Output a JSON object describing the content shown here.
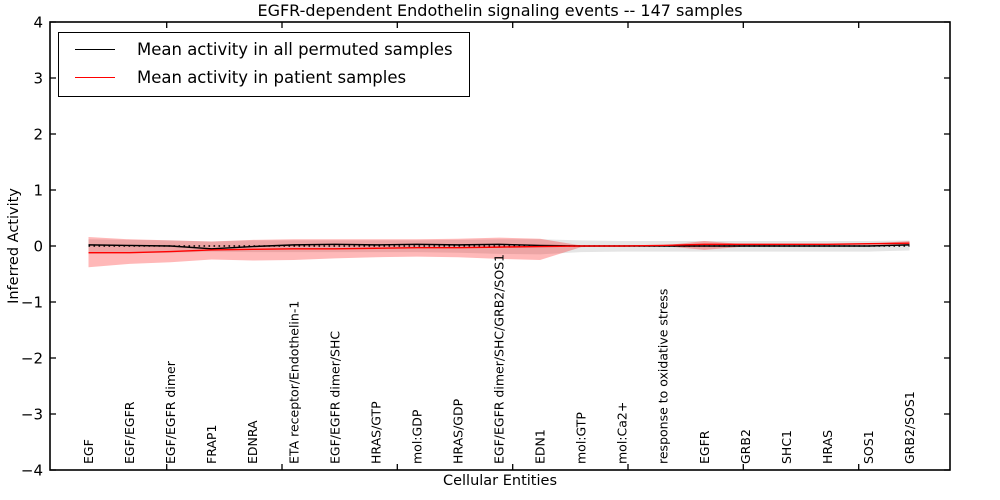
{
  "title": "EGFR-dependent Endothelin signaling events -- 147 samples",
  "axes": {
    "xlabel": "Cellular Entities",
    "ylabel": "Inferred Activity",
    "yticks": [
      "4",
      "3",
      "2",
      "1",
      "0",
      "−1",
      "−2",
      "−3",
      "−4"
    ],
    "ylim": [
      -4,
      4
    ]
  },
  "legend": {
    "items": [
      {
        "label": "Mean activity in all permuted samples",
        "color": "#000000"
      },
      {
        "label": "Mean activity in patient samples",
        "color": "#ff0000"
      }
    ]
  },
  "chart_data": {
    "type": "line",
    "title": "EGFR-dependent Endothelin signaling events -- 147 samples",
    "xlabel": "Cellular Entities",
    "ylabel": "Inferred Activity",
    "ylim": [
      -4,
      4
    ],
    "grid": false,
    "legend_position": "upper left",
    "categories": [
      "EGF",
      "EGF/EGFR",
      "EGF/EGFR dimer",
      "FRAP1",
      "EDNRA",
      "ETA receptor/Endothelin-1",
      "EGF/EGFR dimer/SHC",
      "HRAS/GTP",
      "mol:GDP",
      "HRAS/GDP",
      "EGF/EGFR dimer/SHC/GRB2/SOS1",
      "EDN1",
      "mol:GTP",
      "mol:Ca2+",
      "response to oxidative stress",
      "EGFR",
      "GRB2",
      "SHC1",
      "HRAS",
      "SOS1",
      "GRB2/SOS1"
    ],
    "series": [
      {
        "name": "Mean activity in all permuted samples",
        "color": "#000000",
        "values": [
          0.02,
          0.01,
          0.0,
          -0.05,
          -0.01,
          0.02,
          0.03,
          0.02,
          0.03,
          0.02,
          0.03,
          0.01,
          0.0,
          0.0,
          0.0,
          0.0,
          0.0,
          0.0,
          0.0,
          0.0,
          0.02
        ]
      },
      {
        "name": "Mean activity in patient samples",
        "color": "#ff0000",
        "values": [
          -0.12,
          -0.12,
          -0.1,
          -0.07,
          -0.06,
          -0.05,
          -0.05,
          -0.04,
          -0.03,
          -0.03,
          -0.02,
          -0.01,
          0.0,
          0.0,
          0.01,
          0.03,
          0.03,
          0.03,
          0.03,
          0.04,
          0.05
        ]
      }
    ],
    "bands": [
      {
        "name": "permuted-samples-std-band",
        "color": "#000000",
        "opacity": 0.1,
        "upper": [
          0.12,
          0.11,
          0.1,
          0.08,
          0.1,
          0.1,
          0.1,
          0.1,
          0.1,
          0.11,
          0.12,
          0.12,
          0.1,
          0.09,
          0.09,
          0.09,
          0.09,
          0.09,
          0.09,
          0.09,
          0.1
        ],
        "lower": [
          -0.14,
          -0.13,
          -0.12,
          -0.1,
          -0.11,
          -0.11,
          -0.11,
          -0.11,
          -0.11,
          -0.12,
          -0.14,
          -0.15,
          -0.11,
          -0.1,
          -0.1,
          -0.1,
          -0.1,
          -0.1,
          -0.1,
          -0.1,
          -0.08
        ]
      },
      {
        "name": "patient-samples-std-band",
        "color": "#ff0000",
        "opacity": 0.28,
        "upper": [
          0.16,
          0.12,
          0.1,
          0.08,
          0.11,
          0.12,
          0.12,
          0.12,
          0.12,
          0.13,
          0.15,
          0.13,
          0.01,
          0.0,
          0.01,
          0.09,
          0.03,
          0.03,
          0.03,
          0.04,
          0.09
        ],
        "lower": [
          -0.38,
          -0.32,
          -0.29,
          -0.24,
          -0.26,
          -0.25,
          -0.22,
          -0.2,
          -0.19,
          -0.2,
          -0.23,
          -0.25,
          -0.02,
          0.0,
          0.0,
          -0.07,
          -0.01,
          0.02,
          0.02,
          0.03,
          0.01
        ]
      }
    ],
    "zero_line": {
      "y": 0,
      "style": "dotted",
      "color": "#000000"
    }
  }
}
